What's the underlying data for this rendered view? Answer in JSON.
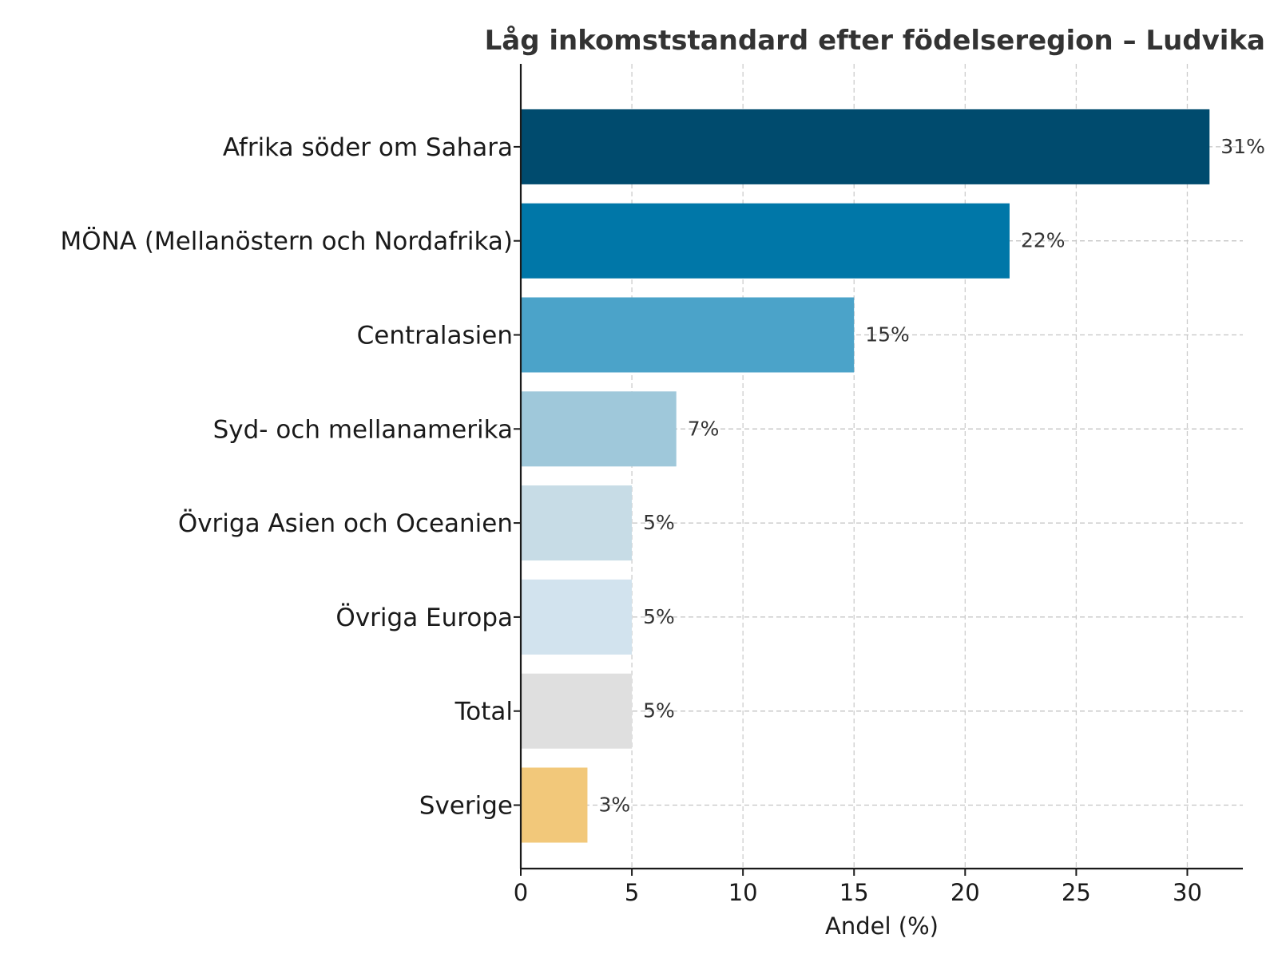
{
  "chart_data": {
    "type": "bar",
    "orientation": "horizontal",
    "title": "Låg inkomststandard efter födelseregion – Ludvika",
    "xlabel": "Andel (%)",
    "ylabel": "",
    "xlim": [
      0,
      32.5
    ],
    "xticks": [
      0,
      5,
      10,
      15,
      20,
      25,
      30
    ],
    "grid": true,
    "categories": [
      "Afrika söder om Sahara",
      "MÖNA (Mellanöstern och Nordafrika)",
      "Centralasien",
      "Syd- och mellanamerika",
      "Övriga Asien och Oceanien",
      "Övriga Europa",
      "Total",
      "Sverige"
    ],
    "values": [
      31,
      22,
      15,
      7,
      5,
      5,
      5,
      3
    ],
    "value_labels": [
      "31%",
      "22%",
      "15%",
      "7%",
      "5%",
      "5%",
      "5%",
      "3%"
    ],
    "colors": [
      "#004b6e",
      "#0077a8",
      "#4ba3c9",
      "#9fc8da",
      "#c7dce6",
      "#d2e3ee",
      "#dfdfdf",
      "#f2c87a"
    ]
  }
}
